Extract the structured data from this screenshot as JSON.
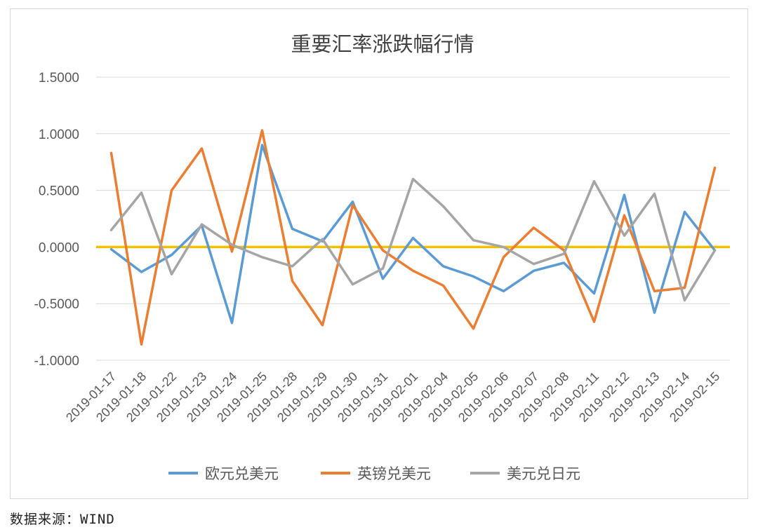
{
  "chart_data": {
    "type": "line",
    "title": "重要汇率涨跌幅行情",
    "xlabel": "",
    "ylabel": "",
    "ylim": [
      -1.0,
      1.5
    ],
    "yticks": [
      1.5,
      1.0,
      0.5,
      0.0,
      -0.5,
      -1.0
    ],
    "ytick_labels": [
      "1.5000",
      "1.0000",
      "0.5000",
      "0.0000",
      "-0.5000",
      "-1.0000"
    ],
    "grid": true,
    "legend_position": "bottom",
    "zero_line_color": "#f5c000",
    "x": [
      "2019-01-17",
      "2019-01-18",
      "2019-01-22",
      "2019-01-23",
      "2019-01-24",
      "2019-01-25",
      "2019-01-28",
      "2019-01-29",
      "2019-01-30",
      "2019-01-31",
      "2019-02-01",
      "2019-02-04",
      "2019-02-05",
      "2019-02-06",
      "2019-02-07",
      "2019-02-08",
      "2019-02-11",
      "2019-02-12",
      "2019-02-13",
      "2019-02-14",
      "2019-02-15"
    ],
    "series": [
      {
        "name": "欧元兑美元",
        "color": "#5b9bd5",
        "values": [
          -0.02,
          -0.22,
          -0.07,
          0.19,
          -0.67,
          0.9,
          0.16,
          0.05,
          0.4,
          -0.28,
          0.08,
          -0.17,
          -0.26,
          -0.39,
          -0.21,
          -0.14,
          -0.41,
          0.46,
          -0.58,
          0.31,
          -0.03
        ]
      },
      {
        "name": "英镑兑美元",
        "color": "#ed7d31",
        "values": [
          0.83,
          -0.86,
          0.5,
          0.87,
          -0.04,
          1.03,
          -0.3,
          -0.69,
          0.37,
          -0.03,
          -0.21,
          -0.34,
          -0.72,
          -0.09,
          0.17,
          -0.03,
          -0.66,
          0.28,
          -0.39,
          -0.36,
          0.7
        ]
      },
      {
        "name": "美元兑日元",
        "color": "#a5a5a5",
        "values": [
          0.15,
          0.48,
          -0.24,
          0.2,
          0.02,
          -0.09,
          -0.17,
          0.07,
          -0.33,
          -0.19,
          0.6,
          0.36,
          0.06,
          0.0,
          -0.15,
          -0.06,
          0.58,
          0.1,
          0.47,
          -0.47,
          -0.03
        ]
      }
    ]
  },
  "source": "数据来源：WIND"
}
